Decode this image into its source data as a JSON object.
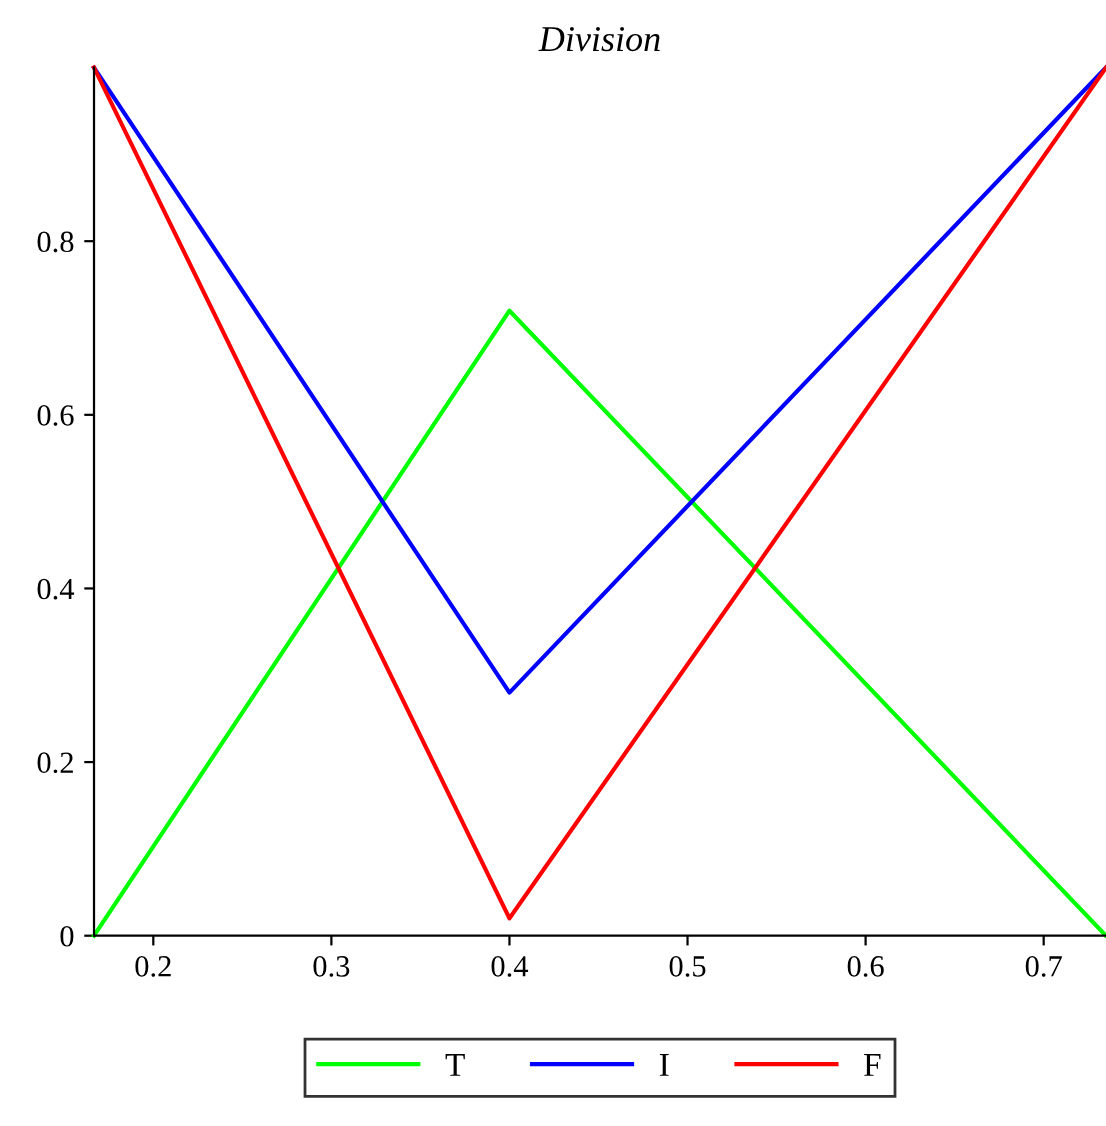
{
  "chart_data": {
    "type": "line",
    "title": "Division",
    "x": [
      0.1667,
      0.4,
      0.735
    ],
    "series": [
      {
        "name": "T",
        "color": "#00ff00",
        "values": [
          0,
          0.72,
          0
        ]
      },
      {
        "name": "I",
        "color": "#0000ff",
        "values": [
          1,
          0.28,
          1
        ]
      },
      {
        "name": "F",
        "color": "#ff0000",
        "values": [
          1,
          0.02,
          1
        ]
      }
    ],
    "xlim": [
      0.1667,
      0.735
    ],
    "ylim": [
      0,
      1
    ],
    "xticks": [
      0.2,
      0.3,
      0.4,
      0.5,
      0.6,
      0.7
    ],
    "yticks": [
      0,
      0.2,
      0.4,
      0.6,
      0.8
    ],
    "grid": false,
    "legend": "bottom",
    "marker": "none",
    "line_style": "solid"
  }
}
